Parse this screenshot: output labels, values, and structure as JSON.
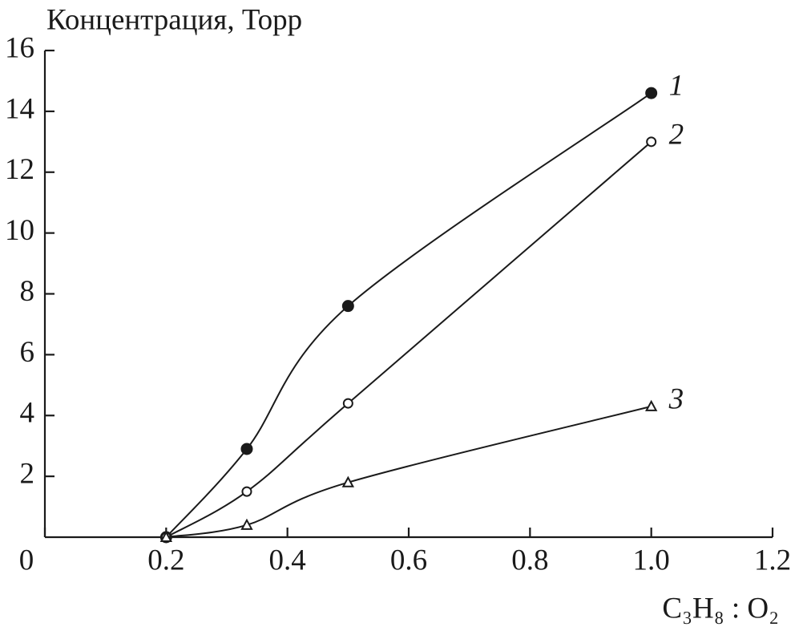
{
  "chart_data": {
    "type": "line",
    "ylabel": "Концентрация, Торр",
    "xlabel": "C₃H₈ : O₂",
    "xlim": [
      0,
      1.2
    ],
    "xticks": [
      0,
      0.2,
      0.4,
      0.6,
      0.8,
      {
        "value": 1,
        "label": "1.0"
      },
      1.2
    ],
    "ylim": [
      0,
      16
    ],
    "yticks": [
      2,
      4,
      6,
      8,
      10,
      12,
      14,
      16
    ],
    "color": "#1a1a1a",
    "series": [
      {
        "name": "1",
        "marker": "filled-circle",
        "x": [
          0.2,
          0.333,
          0.5,
          1.0
        ],
        "values": [
          0,
          2.9,
          7.6,
          14.6
        ]
      },
      {
        "name": "2",
        "marker": "open-circle",
        "x": [
          0.2,
          0.333,
          0.5,
          1.0
        ],
        "values": [
          0,
          1.5,
          4.4,
          13
        ]
      },
      {
        "name": "3",
        "marker": "open-triangle",
        "x": [
          0.2,
          0.333,
          0.5,
          1.0
        ],
        "values": [
          0,
          0.4,
          1.8,
          4.3
        ]
      }
    ]
  }
}
